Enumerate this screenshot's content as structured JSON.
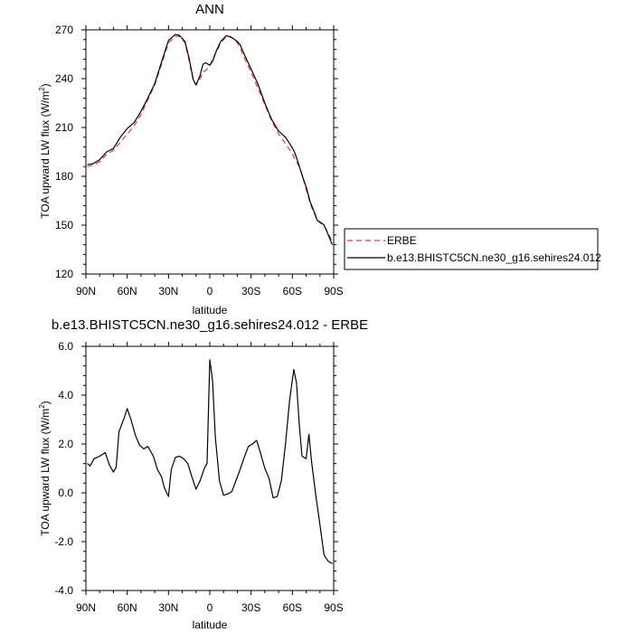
{
  "chart_data": [
    {
      "type": "line",
      "title": "ANN",
      "xlabel": "latitude",
      "ylabel": "TOA upward LW flux (W/m",
      "ylabel_sup": "2",
      "ylabel_close": ")",
      "xlim": [
        90,
        -90
      ],
      "ylim": [
        120,
        270
      ],
      "x_ticks": [
        90,
        60,
        30,
        0,
        -30,
        -60,
        -90
      ],
      "x_tick_labels": [
        "90N",
        "60N",
        "30N",
        "0",
        "30S",
        "60S",
        "90S"
      ],
      "y_ticks": [
        120,
        150,
        180,
        210,
        240,
        270
      ],
      "y_tick_labels": [
        "120",
        "150",
        "180",
        "210",
        "240",
        "270"
      ],
      "legend_position": "outside right",
      "series": [
        {
          "name": "ERBE",
          "style": "dashed",
          "color": "#e83a3a",
          "x": [
            89,
            85,
            80,
            75,
            70,
            65,
            60,
            55,
            50,
            45,
            40,
            35,
            30,
            25,
            22,
            18,
            15,
            12,
            10,
            7,
            5,
            3,
            0,
            -2,
            -5,
            -8,
            -12,
            -15,
            -18,
            -20,
            -22,
            -25,
            -30,
            -35,
            -40,
            -45,
            -50,
            -55,
            -60,
            -62,
            -65,
            -68,
            -70,
            -73,
            -76,
            -78,
            -80,
            -83,
            -86,
            -89
          ],
          "y": [
            186,
            186.8,
            189,
            193.5,
            196,
            201,
            206,
            211,
            218,
            227,
            236,
            249,
            262,
            266,
            266,
            262,
            251,
            239,
            236,
            240,
            244,
            245,
            248,
            252,
            257,
            262,
            266,
            266,
            264,
            262,
            259,
            253,
            244,
            234,
            224,
            214,
            206,
            200,
            194,
            190,
            186,
            178,
            172,
            163,
            157,
            153,
            151.5,
            150,
            145,
            140
          ]
        },
        {
          "name": "b.e13.BHISTC5CN.ne30_g16.sehires24.012",
          "style": "solid",
          "color": "#000000",
          "x": [
            89,
            85,
            80,
            75,
            70,
            65,
            60,
            55,
            50,
            45,
            40,
            35,
            30,
            25,
            22,
            18,
            15,
            12,
            10,
            7,
            5,
            3,
            0,
            -2,
            -5,
            -8,
            -12,
            -15,
            -18,
            -20,
            -22,
            -25,
            -30,
            -35,
            -40,
            -45,
            -50,
            -55,
            -60,
            -62,
            -65,
            -68,
            -70,
            -73,
            -76,
            -78,
            -80,
            -83,
            -86,
            -89
          ],
          "y": [
            187.2,
            187.7,
            190.2,
            195.0,
            197.1,
            204.0,
            209.4,
            213.0,
            219.9,
            228.1,
            237.0,
            250.4,
            263.5,
            267.2,
            266.6,
            262.8,
            252.4,
            239.4,
            236.2,
            242.0,
            248.8,
            249.8,
            248.3,
            250.6,
            257.6,
            262.9,
            266.4,
            265.6,
            264.1,
            262.8,
            260.9,
            255.0,
            246.0,
            236.6,
            225.0,
            214.8,
            207.8,
            204.0,
            197.5,
            194.0,
            186.3,
            178.4,
            173.5,
            164.2,
            158.0,
            153.0,
            152.0,
            150.1,
            144.2,
            138.0
          ]
        }
      ]
    },
    {
      "type": "line",
      "title": "b.e13.BHISTC5CN.ne30_g16.sehires24.012 - ERBE",
      "xlabel": "latitude",
      "ylabel": "TOA upward LW flux (W/m",
      "ylabel_sup": "2",
      "ylabel_close": ")",
      "xlim": [
        90,
        -90
      ],
      "ylim": [
        -4.0,
        6.0
      ],
      "x_ticks": [
        90,
        60,
        30,
        0,
        -30,
        -60,
        -90
      ],
      "x_tick_labels": [
        "90N",
        "60N",
        "30N",
        "0",
        "30S",
        "60S",
        "90S"
      ],
      "y_ticks": [
        -4.0,
        -2.0,
        0.0,
        2.0,
        4.0,
        6.0
      ],
      "y_tick_labels": [
        "-4.0",
        "-2.0",
        "0.0",
        "2.0",
        "4.0",
        "6.0"
      ],
      "series": [
        {
          "name": "",
          "style": "solid",
          "color": "#000000",
          "x": [
            89,
            87,
            84,
            80,
            76,
            73,
            70,
            68,
            66,
            62,
            60,
            57,
            54,
            51,
            48,
            45,
            41,
            38,
            35,
            33,
            30,
            28,
            25,
            22,
            19,
            16,
            13,
            10,
            7,
            4,
            2,
            0,
            -2,
            -4,
            -7,
            -10,
            -13,
            -16,
            -19,
            -22,
            -25,
            -28,
            -31,
            -34,
            -37,
            -40,
            -43,
            -46,
            -49,
            -52,
            -55,
            -58,
            -61,
            -63,
            -65,
            -67,
            -70,
            -72,
            -74,
            -77,
            -80,
            -83,
            -86,
            -89
          ],
          "y": [
            1.2,
            1.1,
            1.4,
            1.5,
            1.65,
            1.15,
            0.85,
            1.05,
            2.5,
            3.1,
            3.45,
            2.95,
            2.35,
            1.95,
            1.8,
            1.9,
            1.5,
            0.95,
            0.65,
            0.2,
            -0.15,
            0.95,
            1.45,
            1.5,
            1.4,
            1.2,
            0.65,
            0.15,
            0.5,
            1.0,
            1.2,
            5.45,
            4.6,
            2.3,
            0.5,
            -0.1,
            -0.05,
            0.05,
            0.5,
            0.95,
            1.45,
            1.9,
            2.0,
            2.15,
            1.6,
            1.0,
            0.6,
            -0.2,
            -0.15,
            0.5,
            2.0,
            3.8,
            5.05,
            4.5,
            2.8,
            1.5,
            1.4,
            2.4,
            1.25,
            -0.1,
            -1.3,
            -2.55,
            -2.8,
            -2.9
          ]
        }
      ]
    }
  ]
}
